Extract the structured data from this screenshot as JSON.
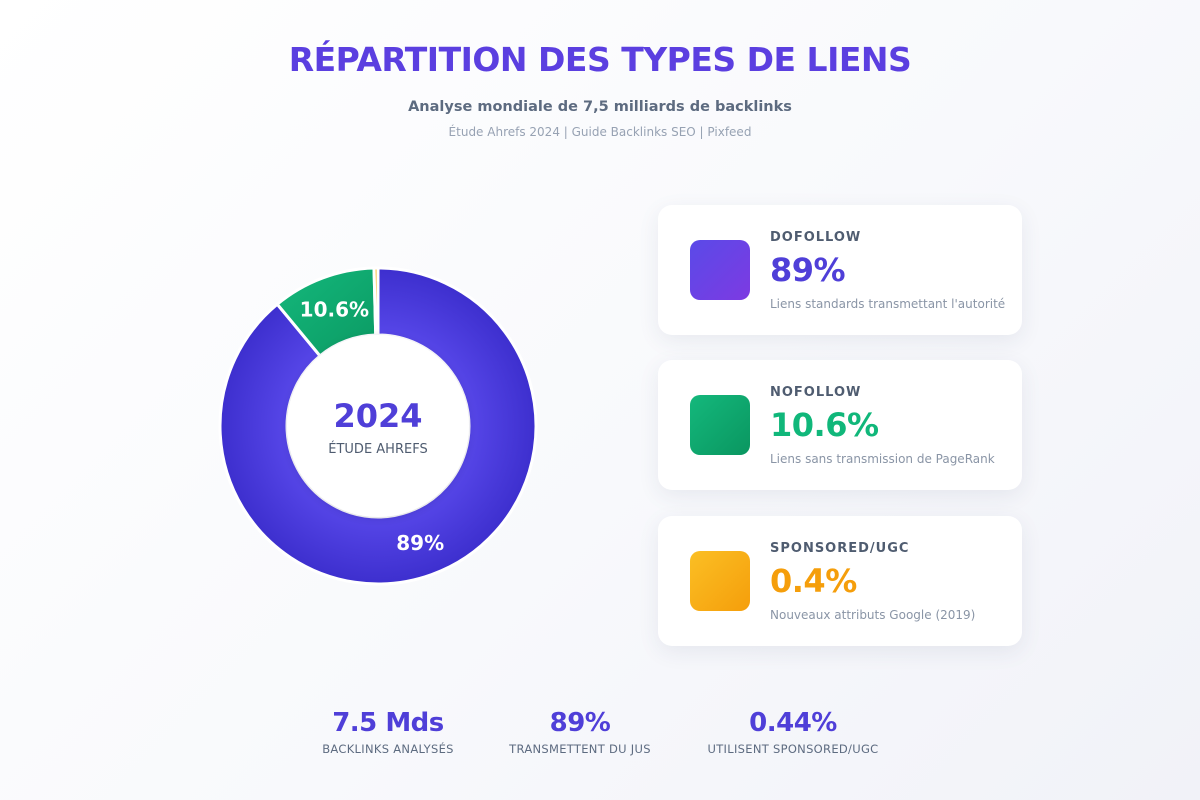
{
  "header": {
    "title": "RÉPARTITION DES TYPES DE LIENS",
    "subtitle": "Analyse mondiale de 7,5 milliards de backlinks",
    "source": "Étude Ahrefs 2024 | Guide Backlinks SEO | Pixfeed"
  },
  "donut": {
    "center_value": "2024",
    "center_label": "ÉTUDE AHREFS"
  },
  "chart_data": {
    "type": "pie",
    "title": "RÉPARTITION DES TYPES DE LIENS",
    "categories": [
      "DOFOLLOW",
      "NOFOLLOW",
      "SPONSORED/UGC"
    ],
    "values": [
      89,
      10.6,
      0.4
    ],
    "slice_labels": [
      "89%",
      "10.6%",
      ""
    ],
    "colors": [
      "#4f3fd8",
      "#10a86e",
      "#f5ad1c"
    ]
  },
  "cards": [
    {
      "label": "DOFOLLOW",
      "value": "89%",
      "description": "Liens standards transmettant l'autorité",
      "color": "#4f3fd8"
    },
    {
      "label": "NOFOLLOW",
      "value": "10.6%",
      "description": "Liens sans transmission de PageRank",
      "color": "#10b77a"
    },
    {
      "label": "SPONSORED/UGC",
      "value": "0.4%",
      "description": "Nouveaux attributs Google (2019)",
      "color": "#f59e0b"
    }
  ],
  "stats": [
    {
      "value": "7.5 Mds",
      "label": "BACKLINKS ANALYSÉS"
    },
    {
      "value": "89%",
      "label": "TRANSMETTENT DU JUS"
    },
    {
      "value": "0.44%",
      "label": "UTILISENT SPONSORED/UGC"
    }
  ]
}
